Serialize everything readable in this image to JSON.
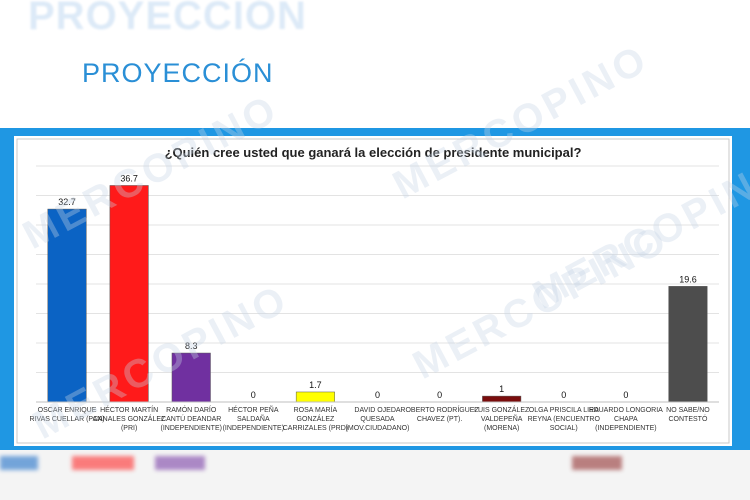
{
  "header": {
    "ghost_title": "PROYECCIÓN",
    "title": "PROYECCIÓN"
  },
  "watermark": {
    "text": "MERCOPINO"
  },
  "chart_data": {
    "type": "bar",
    "title": "¿Quién cree usted que ganará la elección de presidente municipal?",
    "categories": [
      [
        "OSCAR ENRIQUE",
        "RIVAS CUELLAR (PAN)"
      ],
      [
        "HÉCTOR MARTÍN",
        "CANALES GONZÁLEZ",
        "(PRI)"
      ],
      [
        "RAMÓN DARÍO",
        "CANTÚ DEANDAR",
        "(INDEPENDIENTE)"
      ],
      [
        "HÉCTOR PEÑA",
        "SALDAÑA",
        "(INDEPENDIENTE)"
      ],
      [
        "ROSA MARÍA",
        "GONZÁLEZ",
        "CARRIZALES (PRD)"
      ],
      [
        "DAVID OJEDA",
        "QUESADA",
        "(MOV.CIUDADANO)"
      ],
      [
        "ROBERTO RODRÍGUEZ",
        "CHAVEZ (PT)."
      ],
      [
        "LUIS GONZÁLEZ",
        "VALDEPEÑA",
        "(MORENA)"
      ],
      [
        "OLGA PRISCILA LIRA",
        "REYNA (ENCUENTRO",
        "SOCIAL)"
      ],
      [
        "EDUARDO LONGORIA",
        "CHAPA",
        "(INDEPENDIENTE)"
      ],
      [
        "NO SABE/NO",
        "CONTESTÓ"
      ]
    ],
    "values": [
      32.7,
      36.7,
      8.3,
      0,
      1.7,
      0,
      0,
      1,
      0,
      0,
      19.6
    ],
    "value_labels": [
      "32.7",
      "36.7",
      "8.3",
      "0",
      "1.7",
      "0",
      "0",
      "1",
      "0",
      "0",
      "19.6"
    ],
    "colors": [
      "#0b63c4",
      "#ff1a1a",
      "#7030a0",
      "#7030a0",
      "#ffff00",
      "#7030a0",
      "#7030a0",
      "#7a0d0d",
      "#7030a0",
      "#7030a0",
      "#4d4d4d"
    ],
    "ylim": [
      0,
      40
    ],
    "grid": true,
    "xlabel": "",
    "ylabel": ""
  }
}
